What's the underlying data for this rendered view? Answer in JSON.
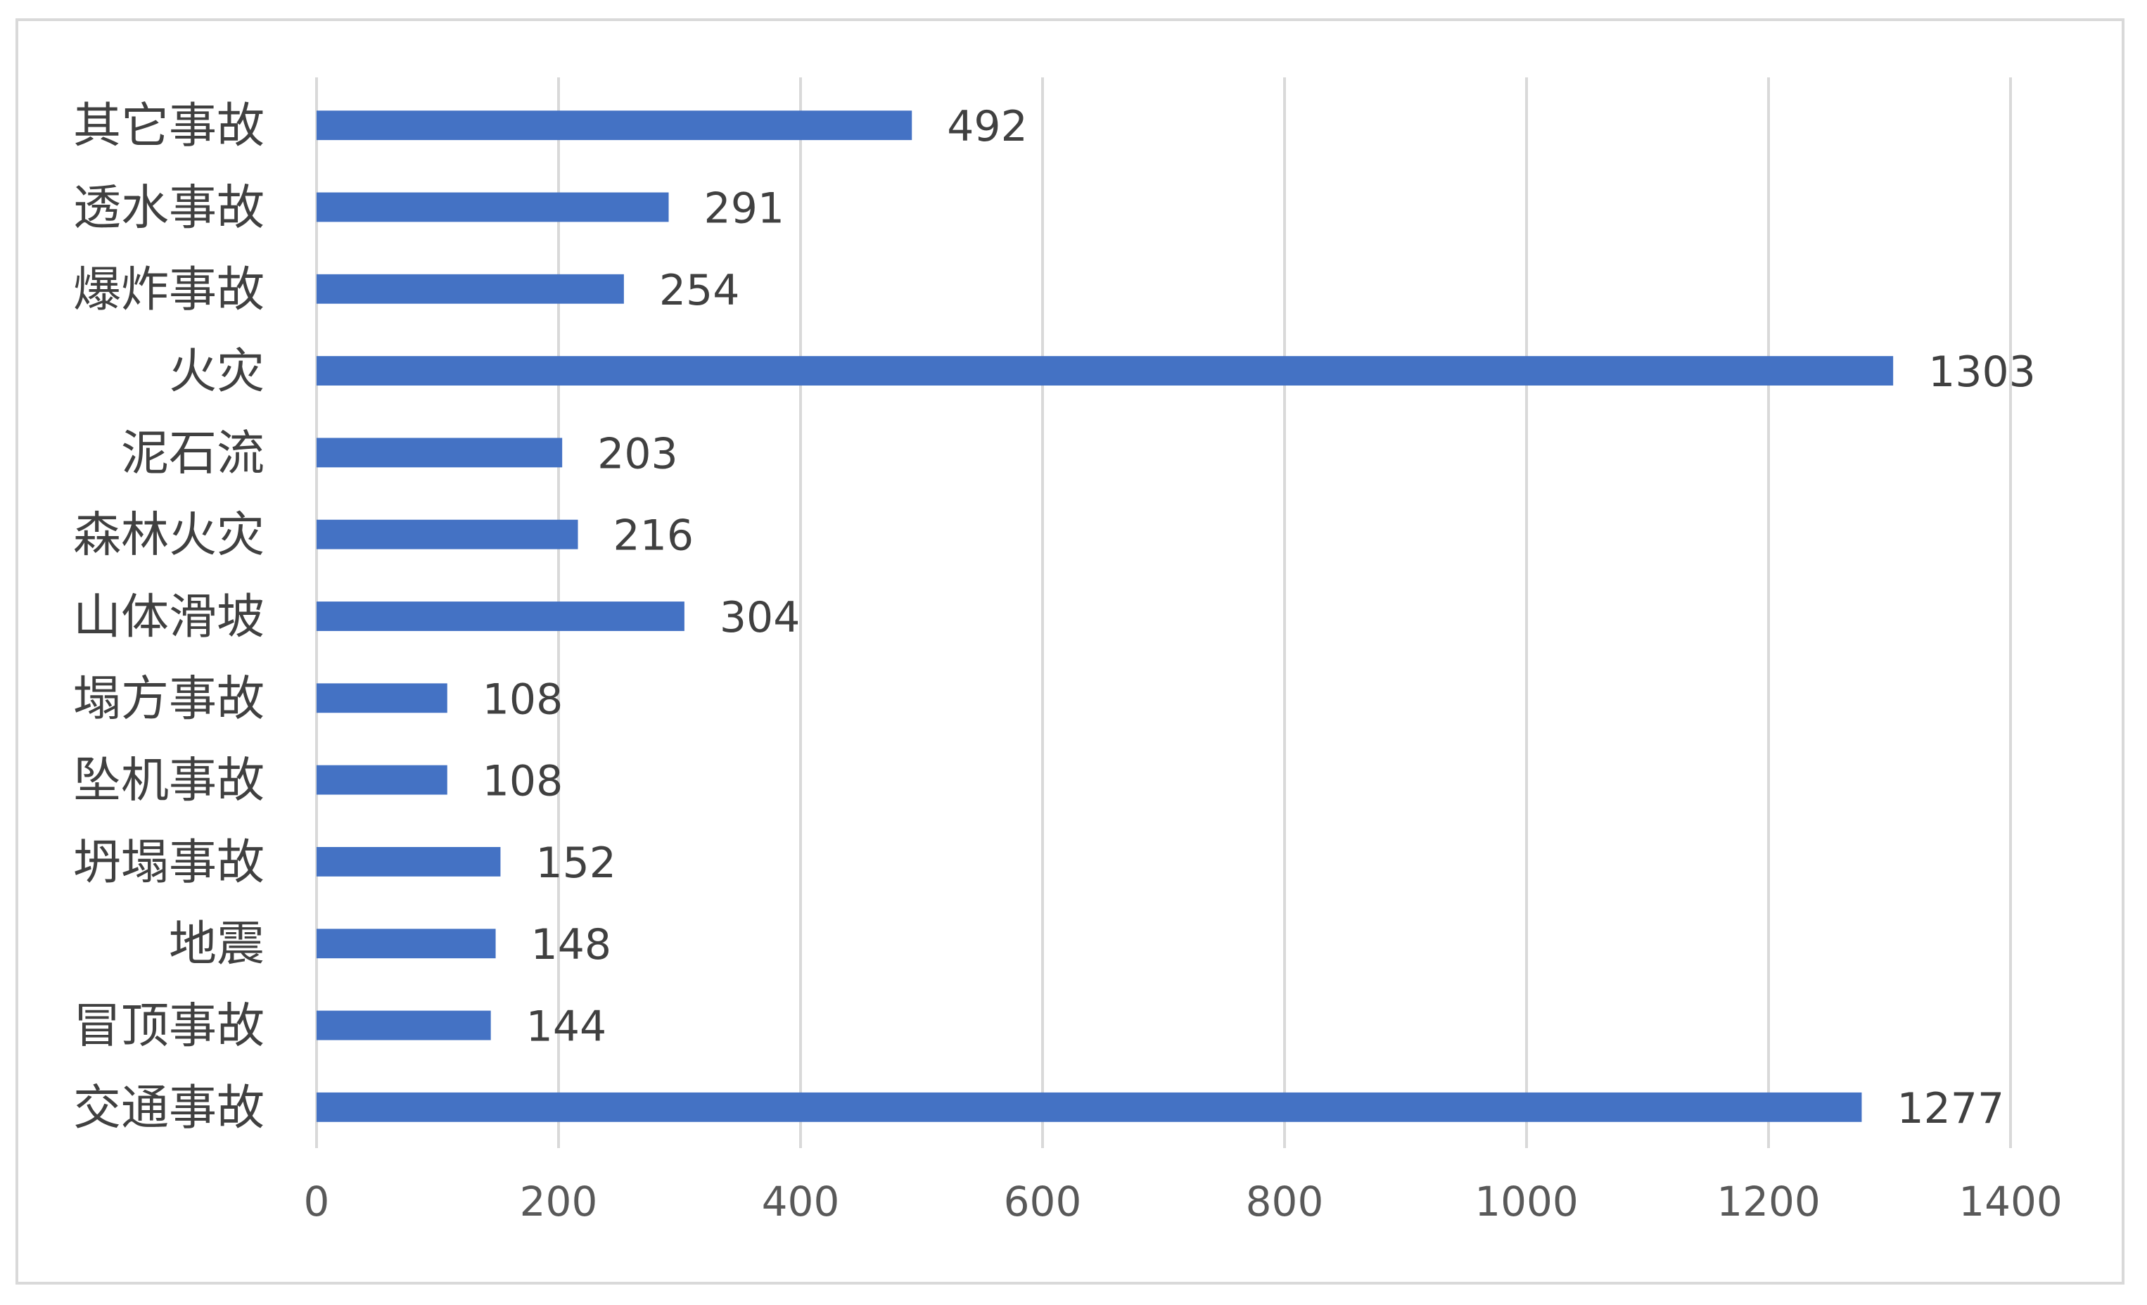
{
  "chart_data": {
    "type": "bar",
    "orientation": "horizontal",
    "categories": [
      "交通事故",
      "冒顶事故",
      "地震",
      "坍塌事故",
      "坠机事故",
      "塌方事故",
      "山体滑坡",
      "森林火灾",
      "泥石流",
      "火灾",
      "爆炸事故",
      "透水事故",
      "其它事故"
    ],
    "values": [
      1277,
      144,
      148,
      152,
      108,
      108,
      304,
      216,
      203,
      1303,
      254,
      291,
      492
    ],
    "xlim": [
      0,
      1400
    ],
    "xticks": [
      0,
      200,
      400,
      600,
      800,
      1000,
      1200,
      1400
    ],
    "grid": true,
    "data_labels": true,
    "bar_color": "#4472c4",
    "title": "",
    "xlabel": "",
    "ylabel": ""
  }
}
